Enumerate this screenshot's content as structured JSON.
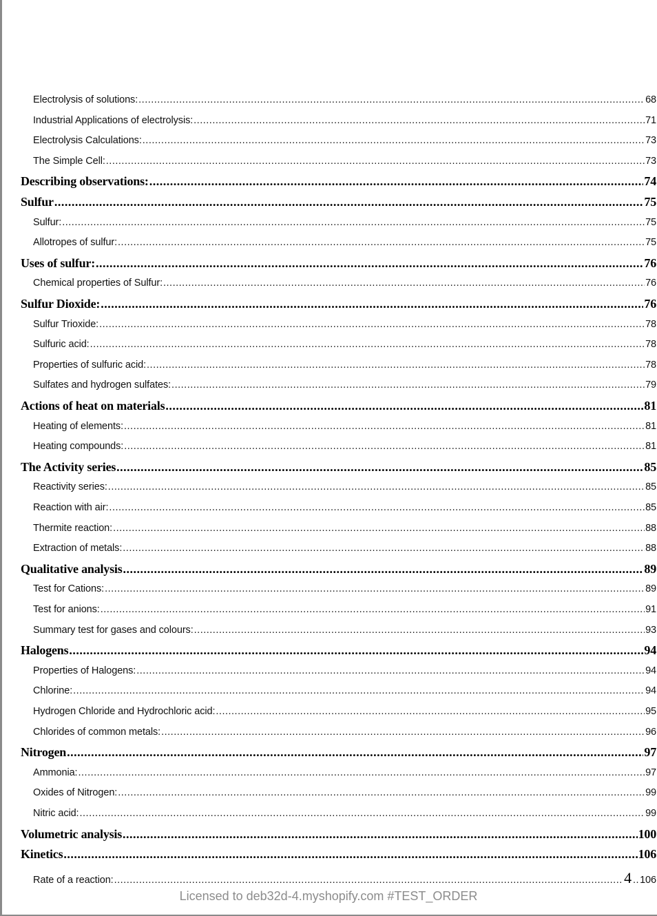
{
  "toc": [
    {
      "level": 2,
      "title": "Electrolysis of solutions:",
      "page": "68"
    },
    {
      "level": 2,
      "title": "Industrial Applications of electrolysis:",
      "page": "71"
    },
    {
      "level": 2,
      "title": "Electrolysis Calculations: ",
      "page": "73"
    },
    {
      "level": 2,
      "title": "The Simple Cell:",
      "page": "73"
    },
    {
      "level": 1,
      "title": "Describing observations:",
      "page": "74"
    },
    {
      "level": 1,
      "title": "Sulfur",
      "page": "75"
    },
    {
      "level": 2,
      "title": "Sulfur: ",
      "page": "75"
    },
    {
      "level": 2,
      "title": "Allotropes of sulfur:",
      "page": "75"
    },
    {
      "level": 1,
      "title": "Uses of sulfur: ",
      "page": "76"
    },
    {
      "level": 2,
      "title": "Chemical properties of Sulfur: ",
      "page": "76"
    },
    {
      "level": 1,
      "title": "Sulfur Dioxide:",
      "page": "76"
    },
    {
      "level": 2,
      "title": "Sulfur Trioxide:",
      "page": "78"
    },
    {
      "level": 2,
      "title": "Sulfuric acid: ",
      "page": "78"
    },
    {
      "level": 2,
      "title": "Properties of sulfuric acid:",
      "page": "78"
    },
    {
      "level": 2,
      "title": "Sulfates and hydrogen sulfates: ",
      "page": "79"
    },
    {
      "level": 1,
      "title": "Actions of heat on materials ",
      "page": "81"
    },
    {
      "level": 2,
      "title": "Heating of elements:",
      "page": "81"
    },
    {
      "level": 2,
      "title": "Heating compounds: ",
      "page": "81"
    },
    {
      "level": 1,
      "title": "The Activity series ",
      "page": "85"
    },
    {
      "level": 2,
      "title": "Reactivity series:",
      "page": "85"
    },
    {
      "level": 2,
      "title": "Reaction with air: ",
      "page": "85"
    },
    {
      "level": 2,
      "title": "Thermite reaction: ",
      "page": "88"
    },
    {
      "level": 2,
      "title": "Extraction of metals: ",
      "page": "88"
    },
    {
      "level": 1,
      "title": "Qualitative analysis ",
      "page": "89"
    },
    {
      "level": 2,
      "title": "Test for Cations: ",
      "page": "89"
    },
    {
      "level": 2,
      "title": "Test for anions:",
      "page": "91"
    },
    {
      "level": 2,
      "title": "Summary test for gases and colours: ",
      "page": "93"
    },
    {
      "level": 1,
      "title": "Halogens ",
      "page": "94"
    },
    {
      "level": 2,
      "title": "Properties of Halogens: ",
      "page": "94"
    },
    {
      "level": 2,
      "title": "Chlorine: ",
      "page": "94"
    },
    {
      "level": 2,
      "title": "Hydrogen Chloride and Hydrochloric acid: ",
      "page": "95"
    },
    {
      "level": 2,
      "title": "Chlorides of common metals: ",
      "page": "96"
    },
    {
      "level": 1,
      "title": "Nitrogen",
      "page": "97"
    },
    {
      "level": 2,
      "title": "Ammonia:",
      "page": "97"
    },
    {
      "level": 2,
      "title": "Oxides of Nitrogen: ",
      "page": "99"
    },
    {
      "level": 2,
      "title": "Nitric acid: ",
      "page": "99"
    },
    {
      "level": 1,
      "title": "Volumetric analysis",
      "page": "100"
    },
    {
      "level": 1,
      "title": "Kinetics",
      "page": "106"
    },
    {
      "level": 2,
      "title": "Rate of a reaction:",
      "page": "106"
    }
  ],
  "page_number": "4",
  "footer": "Licensed to deb32d-4.myshopify.com #TEST_ORDER"
}
